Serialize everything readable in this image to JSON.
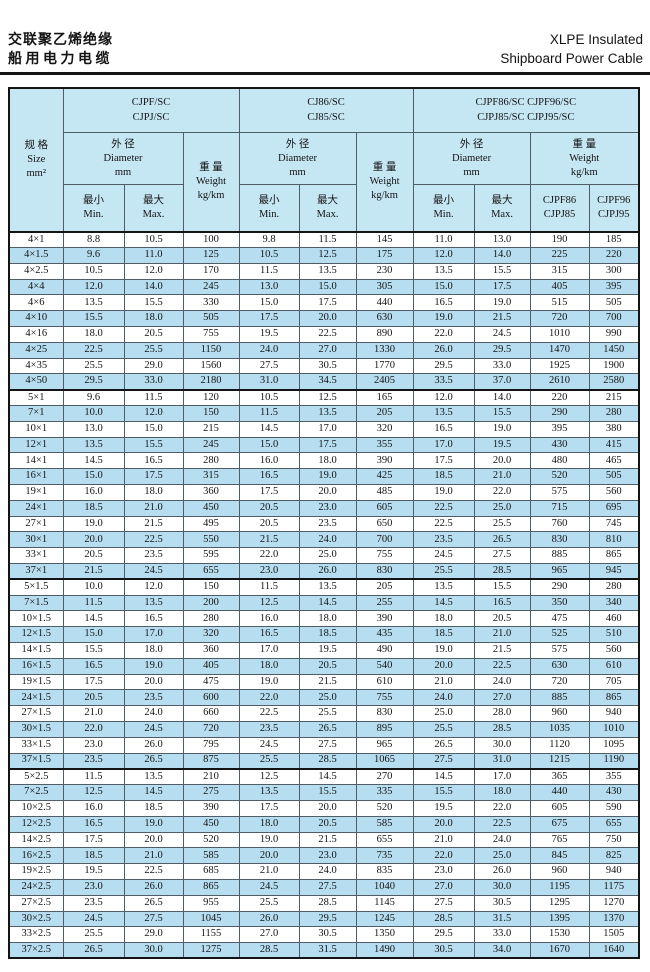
{
  "colors": {
    "header_bg": "#c5e6f3",
    "alt_row_bg": "#b6def0",
    "grid_line": "#4f5d66",
    "heavy_line": "#141414"
  },
  "header": {
    "title_cn_line1": "交联聚乙烯绝缘",
    "title_cn_line2": "船用电力电缆",
    "title_en_line1": "XLPE Insulated",
    "title_en_line2": "Shipboard Power Cable"
  },
  "table": {
    "size_header": {
      "cn": "规 格",
      "en": "Size",
      "unit": "mm²"
    },
    "groups": [
      {
        "line1": "CJPF/SC",
        "line2": "CJPJ/SC"
      },
      {
        "line1": "CJ86/SC",
        "line2": "CJ85/SC"
      },
      {
        "line1": "CJPF86/SC CJPF96/SC",
        "line2": "CJPJ85/SC CJPJ95/SC"
      }
    ],
    "diameter_header": {
      "cn": "外 径",
      "en": "Diameter",
      "unit": "mm"
    },
    "weight_header": {
      "cn": "重 量",
      "en": "Weight",
      "unit": "kg/km"
    },
    "min_header": {
      "cn": "最小",
      "en": "Min."
    },
    "max_header": {
      "cn": "最大",
      "en": "Max."
    },
    "weight_sub1": {
      "line1": "CJPF86",
      "line2": "CJPJ85"
    },
    "weight_sub2": {
      "line1": "CJPF96",
      "line2": "CJPJ95"
    },
    "group_start_indices": [
      10,
      22,
      34
    ],
    "rows": [
      [
        "4×1",
        "8.8",
        "10.5",
        "100",
        "9.8",
        "11.5",
        "145",
        "11.0",
        "13.0",
        "190",
        "185"
      ],
      [
        "4×1.5",
        "9.6",
        "11.0",
        "125",
        "10.5",
        "12.5",
        "175",
        "12.0",
        "14.0",
        "225",
        "220"
      ],
      [
        "4×2.5",
        "10.5",
        "12.0",
        "170",
        "11.5",
        "13.5",
        "230",
        "13.5",
        "15.5",
        "315",
        "300"
      ],
      [
        "4×4",
        "12.0",
        "14.0",
        "245",
        "13.0",
        "15.0",
        "305",
        "15.0",
        "17.5",
        "405",
        "395"
      ],
      [
        "4×6",
        "13.5",
        "15.5",
        "330",
        "15.0",
        "17.5",
        "440",
        "16.5",
        "19.0",
        "515",
        "505"
      ],
      [
        "4×10",
        "15.5",
        "18.0",
        "505",
        "17.5",
        "20.0",
        "630",
        "19.0",
        "21.5",
        "720",
        "700"
      ],
      [
        "4×16",
        "18.0",
        "20.5",
        "755",
        "19.5",
        "22.5",
        "890",
        "22.0",
        "24.5",
        "1010",
        "990"
      ],
      [
        "4×25",
        "22.5",
        "25.5",
        "1150",
        "24.0",
        "27.0",
        "1330",
        "26.0",
        "29.5",
        "1470",
        "1450"
      ],
      [
        "4×35",
        "25.5",
        "29.0",
        "1560",
        "27.5",
        "30.5",
        "1770",
        "29.5",
        "33.0",
        "1925",
        "1900"
      ],
      [
        "4×50",
        "29.5",
        "33.0",
        "2180",
        "31.0",
        "34.5",
        "2405",
        "33.5",
        "37.0",
        "2610",
        "2580"
      ],
      [
        "5×1",
        "9.6",
        "11.5",
        "120",
        "10.5",
        "12.5",
        "165",
        "12.0",
        "14.0",
        "220",
        "215"
      ],
      [
        "7×1",
        "10.0",
        "12.0",
        "150",
        "11.5",
        "13.5",
        "205",
        "13.5",
        "15.5",
        "290",
        "280"
      ],
      [
        "10×1",
        "13.0",
        "15.0",
        "215",
        "14.5",
        "17.0",
        "320",
        "16.5",
        "19.0",
        "395",
        "380"
      ],
      [
        "12×1",
        "13.5",
        "15.5",
        "245",
        "15.0",
        "17.5",
        "355",
        "17.0",
        "19.5",
        "430",
        "415"
      ],
      [
        "14×1",
        "14.5",
        "16.5",
        "280",
        "16.0",
        "18.0",
        "390",
        "17.5",
        "20.0",
        "480",
        "465"
      ],
      [
        "16×1",
        "15.0",
        "17.5",
        "315",
        "16.5",
        "19.0",
        "425",
        "18.5",
        "21.0",
        "520",
        "505"
      ],
      [
        "19×1",
        "16.0",
        "18.0",
        "360",
        "17.5",
        "20.0",
        "485",
        "19.0",
        "22.0",
        "575",
        "560"
      ],
      [
        "24×1",
        "18.5",
        "21.0",
        "450",
        "20.5",
        "23.0",
        "605",
        "22.5",
        "25.0",
        "715",
        "695"
      ],
      [
        "27×1",
        "19.0",
        "21.5",
        "495",
        "20.5",
        "23.5",
        "650",
        "22.5",
        "25.5",
        "760",
        "745"
      ],
      [
        "30×1",
        "20.0",
        "22.5",
        "550",
        "21.5",
        "24.0",
        "700",
        "23.5",
        "26.5",
        "830",
        "810"
      ],
      [
        "33×1",
        "20.5",
        "23.5",
        "595",
        "22.0",
        "25.0",
        "755",
        "24.5",
        "27.5",
        "885",
        "865"
      ],
      [
        "37×1",
        "21.5",
        "24.5",
        "655",
        "23.0",
        "26.0",
        "830",
        "25.5",
        "28.5",
        "965",
        "945"
      ],
      [
        "5×1.5",
        "10.0",
        "12.0",
        "150",
        "11.5",
        "13.5",
        "205",
        "13.5",
        "15.5",
        "290",
        "280"
      ],
      [
        "7×1.5",
        "11.5",
        "13.5",
        "200",
        "12.5",
        "14.5",
        "255",
        "14.5",
        "16.5",
        "350",
        "340"
      ],
      [
        "10×1.5",
        "14.5",
        "16.5",
        "280",
        "16.0",
        "18.0",
        "390",
        "18.0",
        "20.5",
        "475",
        "460"
      ],
      [
        "12×1.5",
        "15.0",
        "17.0",
        "320",
        "16.5",
        "18.5",
        "435",
        "18.5",
        "21.0",
        "525",
        "510"
      ],
      [
        "14×1.5",
        "15.5",
        "18.0",
        "360",
        "17.0",
        "19.5",
        "490",
        "19.0",
        "21.5",
        "575",
        "560"
      ],
      [
        "16×1.5",
        "16.5",
        "19.0",
        "405",
        "18.0",
        "20.5",
        "540",
        "20.0",
        "22.5",
        "630",
        "610"
      ],
      [
        "19×1.5",
        "17.5",
        "20.0",
        "475",
        "19.0",
        "21.5",
        "610",
        "21.0",
        "24.0",
        "720",
        "705"
      ],
      [
        "24×1.5",
        "20.5",
        "23.5",
        "600",
        "22.0",
        "25.0",
        "755",
        "24.0",
        "27.0",
        "885",
        "865"
      ],
      [
        "27×1.5",
        "21.0",
        "24.0",
        "660",
        "22.5",
        "25.5",
        "830",
        "25.0",
        "28.0",
        "960",
        "940"
      ],
      [
        "30×1.5",
        "22.0",
        "24.5",
        "720",
        "23.5",
        "26.5",
        "895",
        "25.5",
        "28.5",
        "1035",
        "1010"
      ],
      [
        "33×1.5",
        "23.0",
        "26.0",
        "795",
        "24.5",
        "27.5",
        "965",
        "26.5",
        "30.0",
        "1120",
        "1095"
      ],
      [
        "37×1.5",
        "23.5",
        "26.5",
        "875",
        "25.5",
        "28.5",
        "1065",
        "27.5",
        "31.0",
        "1215",
        "1190"
      ],
      [
        "5×2.5",
        "11.5",
        "13.5",
        "210",
        "12.5",
        "14.5",
        "270",
        "14.5",
        "17.0",
        "365",
        "355"
      ],
      [
        "7×2.5",
        "12.5",
        "14.5",
        "275",
        "13.5",
        "15.5",
        "335",
        "15.5",
        "18.0",
        "440",
        "430"
      ],
      [
        "10×2.5",
        "16.0",
        "18.5",
        "390",
        "17.5",
        "20.0",
        "520",
        "19.5",
        "22.0",
        "605",
        "590"
      ],
      [
        "12×2.5",
        "16.5",
        "19.0",
        "450",
        "18.0",
        "20.5",
        "585",
        "20.0",
        "22.5",
        "675",
        "655"
      ],
      [
        "14×2.5",
        "17.5",
        "20.0",
        "520",
        "19.0",
        "21.5",
        "655",
        "21.0",
        "24.0",
        "765",
        "750"
      ],
      [
        "16×2.5",
        "18.5",
        "21.0",
        "585",
        "20.0",
        "23.0",
        "735",
        "22.0",
        "25.0",
        "845",
        "825"
      ],
      [
        "19×2.5",
        "19.5",
        "22.5",
        "685",
        "21.0",
        "24.0",
        "835",
        "23.0",
        "26.0",
        "960",
        "940"
      ],
      [
        "24×2.5",
        "23.0",
        "26.0",
        "865",
        "24.5",
        "27.5",
        "1040",
        "27.0",
        "30.0",
        "1195",
        "1175"
      ],
      [
        "27×2.5",
        "23.5",
        "26.5",
        "955",
        "25.5",
        "28.5",
        "1145",
        "27.5",
        "30.5",
        "1295",
        "1270"
      ],
      [
        "30×2.5",
        "24.5",
        "27.5",
        "1045",
        "26.0",
        "29.5",
        "1245",
        "28.5",
        "31.5",
        "1395",
        "1370"
      ],
      [
        "33×2.5",
        "25.5",
        "29.0",
        "1155",
        "27.0",
        "30.5",
        "1350",
        "29.5",
        "33.0",
        "1530",
        "1505"
      ],
      [
        "37×2.5",
        "26.5",
        "30.0",
        "1275",
        "28.5",
        "31.5",
        "1490",
        "30.5",
        "34.0",
        "1670",
        "1640"
      ]
    ]
  }
}
